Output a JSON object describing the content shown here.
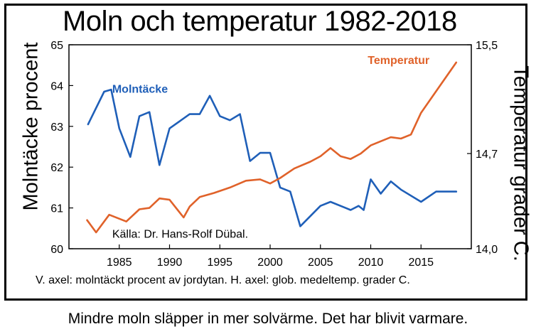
{
  "chart_data": {
    "type": "line",
    "title": "Moln och temperatur 1982-2018",
    "ylabel": "Molntäcke procent",
    "y2label": "Temperatur grader C.",
    "axis_note": "V. axel: molntäckt procent av jordytan. H. axel: glob. medeltemp. grader C.",
    "source": "Källa: Dr. Hans-Rolf Dübal.",
    "caption": "Mindre moln släpper in mer solvärme. Det har blivit varmare.",
    "xlim": [
      1980,
      2020
    ],
    "x_ticks": [
      "1985",
      "1990",
      "1995",
      "2000",
      "2005",
      "2010",
      "2015"
    ],
    "ylim": [
      60,
      65
    ],
    "y_ticks": [
      "60",
      "61",
      "62",
      "63",
      "64",
      "65"
    ],
    "y2lim": [
      14.0,
      15.5
    ],
    "y2_ticks": [
      "14,0",
      "14,7",
      "15,5"
    ],
    "grid": false,
    "series": [
      {
        "name": "Molntäcke",
        "axis": "left",
        "color": "#1f5fb8",
        "x": [
          1981.9,
          1983.5,
          1984.2,
          1985,
          1986.1,
          1987,
          1988,
          1989,
          1990,
          1992,
          1993,
          1994,
          1995,
          1996,
          1997,
          1998,
          1999,
          2000,
          2001,
          2002,
          2003,
          2004,
          2005,
          2006,
          2007.5,
          2008,
          2008.8,
          2009.3,
          2010,
          2011,
          2012,
          2013,
          2015,
          2016.5,
          2018.5
        ],
        "y": [
          63.05,
          63.85,
          63.9,
          62.95,
          62.25,
          63.25,
          63.35,
          62.05,
          62.95,
          63.3,
          63.3,
          63.75,
          63.25,
          63.15,
          63.3,
          62.15,
          62.35,
          62.35,
          61.5,
          61.4,
          60.55,
          60.8,
          61.05,
          61.15,
          61.0,
          60.95,
          61.05,
          60.95,
          61.7,
          61.35,
          61.65,
          61.45,
          61.15,
          61.4,
          61.4
        ]
      },
      {
        "name": "Temperatur",
        "axis": "right",
        "color": "#e0622a",
        "x": [
          1981.8,
          1982.7,
          1984,
          1985.7,
          1987,
          1988,
          1989,
          1990,
          1991.4,
          1992,
          1993,
          1994.4,
          1996,
          1997.6,
          1999,
          2000,
          2001,
          2002.4,
          2004,
          2005,
          2006,
          2007,
          2008,
          2009,
          2010,
          2011,
          2012,
          2013,
          2014,
          2015,
          2018.5
        ],
        "y": [
          14.21,
          14.12,
          14.25,
          14.2,
          14.29,
          14.3,
          14.37,
          14.36,
          14.23,
          14.31,
          14.38,
          14.41,
          14.45,
          14.5,
          14.51,
          14.48,
          14.52,
          14.59,
          14.64,
          14.68,
          14.74,
          14.68,
          14.66,
          14.7,
          14.76,
          14.79,
          14.82,
          14.81,
          14.84,
          15.0,
          15.37
        ]
      }
    ]
  }
}
